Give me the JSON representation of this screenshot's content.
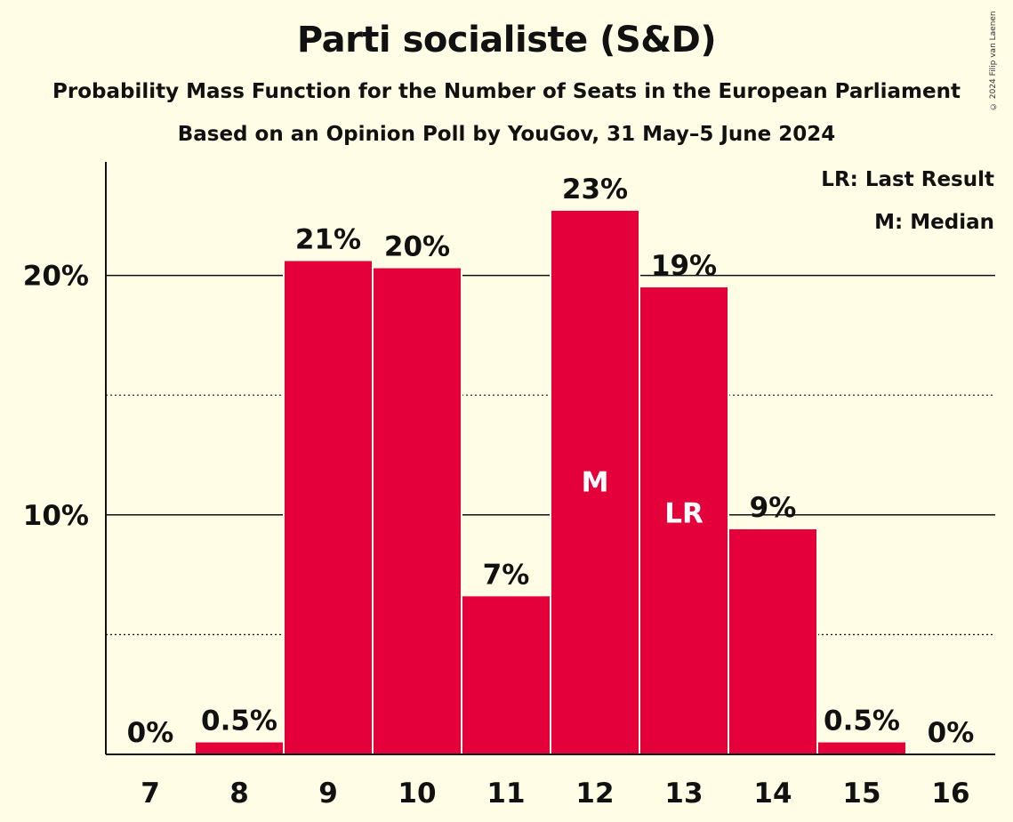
{
  "title": "Parti socialiste (S&D)",
  "subtitle": "Probability Mass Function for the Number of Seats in the European Parliament",
  "subtitle2": "Based on an Opinion Poll by YouGov, 31 May–5 June 2024",
  "copyright": "© 2024 Filip van Laenen",
  "legend": {
    "lr": "LR: Last Result",
    "median": "M: Median"
  },
  "colors": {
    "bar": "#E4003B",
    "background": "#FFFDE5",
    "text": "#111111"
  },
  "chart_data": {
    "type": "bar",
    "categories": [
      "7",
      "8",
      "9",
      "10",
      "11",
      "12",
      "13",
      "14",
      "15",
      "16"
    ],
    "values": [
      0,
      0.5,
      20.6,
      20.3,
      6.6,
      22.7,
      19.5,
      9.4,
      0.5,
      0
    ],
    "data_labels": [
      "0%",
      "0.5%",
      "21%",
      "20%",
      "7%",
      "23%",
      "19%",
      "9%",
      "0.5%",
      "0%"
    ],
    "markers": [
      {
        "category": "12",
        "label": "M"
      },
      {
        "category": "13",
        "label": "LR"
      }
    ],
    "yticks": [
      10,
      20
    ],
    "ytick_labels": [
      "10%",
      "20%"
    ],
    "minor_gridlines": [
      5,
      15
    ],
    "ylim": [
      0,
      25
    ],
    "legend_position": "top-right"
  }
}
